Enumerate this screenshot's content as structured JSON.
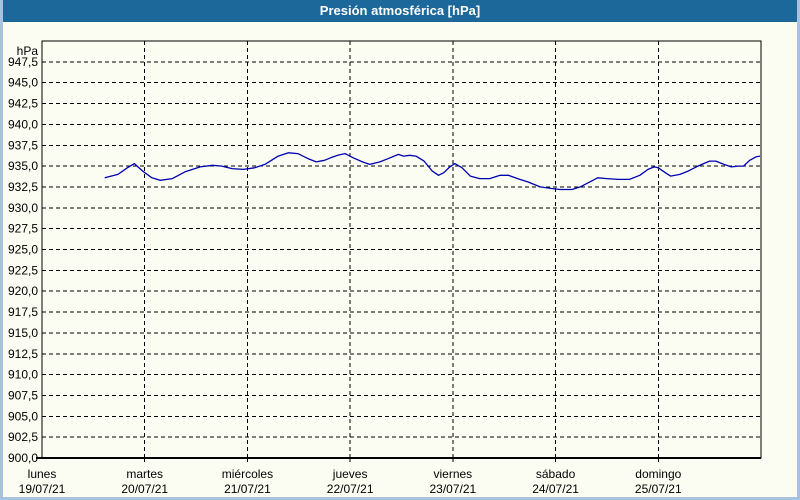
{
  "window": {
    "title": "Presión atmosférica [hPa]"
  },
  "colors": {
    "titlebar_bg": "#1d689b",
    "titlebar_text": "#ffffff",
    "window_border": "#a9c3de",
    "background": "#fbfcf2",
    "grid": "#000000",
    "axis": "#000000",
    "label_text": "#000000",
    "line": "#0000b0"
  },
  "chart_data": {
    "type": "line",
    "title": "Presión atmosférica [hPa]",
    "ylabel": "hPa",
    "ylim": [
      900,
      950
    ],
    "ytick_step": 2.5,
    "ytick_labels": [
      "947,5",
      "945,0",
      "942,5",
      "940,0",
      "937,5",
      "935,0",
      "932,5",
      "930,0",
      "927,5",
      "925,0",
      "922,5",
      "920,0",
      "917,5",
      "915,0",
      "912,5",
      "910,0",
      "907,5",
      "905,0",
      "902,5",
      "900,0"
    ],
    "grid": "dashed",
    "legend_position": "none",
    "x_axis": {
      "span_days": 7,
      "days": [
        {
          "name": "lunes",
          "date": "19/07/21"
        },
        {
          "name": "martes",
          "date": "20/07/21"
        },
        {
          "name": "miércoles",
          "date": "21/07/21"
        },
        {
          "name": "jueves",
          "date": "22/07/21"
        },
        {
          "name": "viernes",
          "date": "23/07/21"
        },
        {
          "name": "sábado",
          "date": "24/07/21"
        },
        {
          "name": "domingo",
          "date": "25/07/21"
        }
      ]
    },
    "series": [
      {
        "name": "Presión atmosférica",
        "unit": "hPa",
        "color": "#0000b0",
        "x_unit": "days_from_monday_00h",
        "points": [
          [
            0.61,
            933.6
          ],
          [
            0.74,
            934.0
          ],
          [
            0.83,
            934.8
          ],
          [
            0.9,
            935.3
          ],
          [
            0.98,
            934.4
          ],
          [
            1.07,
            933.6
          ],
          [
            1.15,
            933.3
          ],
          [
            1.27,
            933.5
          ],
          [
            1.39,
            934.3
          ],
          [
            1.54,
            934.9
          ],
          [
            1.66,
            935.1
          ],
          [
            1.75,
            935.0
          ],
          [
            1.85,
            934.7
          ],
          [
            1.96,
            934.6
          ],
          [
            2.07,
            934.8
          ],
          [
            2.17,
            935.2
          ],
          [
            2.3,
            936.2
          ],
          [
            2.4,
            936.6
          ],
          [
            2.49,
            936.5
          ],
          [
            2.59,
            935.9
          ],
          [
            2.67,
            935.5
          ],
          [
            2.75,
            935.7
          ],
          [
            2.81,
            936.0
          ],
          [
            2.88,
            936.3
          ],
          [
            2.95,
            936.5
          ],
          [
            3.03,
            936.0
          ],
          [
            3.12,
            935.5
          ],
          [
            3.19,
            935.2
          ],
          [
            3.29,
            935.5
          ],
          [
            3.39,
            936.0
          ],
          [
            3.47,
            936.4
          ],
          [
            3.52,
            936.2
          ],
          [
            3.58,
            936.3
          ],
          [
            3.64,
            936.2
          ],
          [
            3.72,
            935.6
          ],
          [
            3.8,
            934.4
          ],
          [
            3.86,
            933.9
          ],
          [
            3.91,
            934.2
          ],
          [
            3.97,
            934.9
          ],
          [
            4.02,
            935.3
          ],
          [
            4.09,
            934.8
          ],
          [
            4.17,
            933.8
          ],
          [
            4.26,
            933.5
          ],
          [
            4.36,
            933.5
          ],
          [
            4.46,
            933.9
          ],
          [
            4.54,
            933.9
          ],
          [
            4.63,
            933.5
          ],
          [
            4.73,
            933.1
          ],
          [
            4.85,
            932.5
          ],
          [
            4.97,
            932.3
          ],
          [
            5.04,
            932.2
          ],
          [
            5.16,
            932.2
          ],
          [
            5.24,
            932.5
          ],
          [
            5.35,
            933.2
          ],
          [
            5.41,
            933.6
          ],
          [
            5.5,
            933.5
          ],
          [
            5.61,
            933.4
          ],
          [
            5.72,
            933.4
          ],
          [
            5.82,
            933.9
          ],
          [
            5.9,
            934.6
          ],
          [
            5.96,
            934.9
          ],
          [
            6.0,
            934.8
          ],
          [
            6.07,
            934.2
          ],
          [
            6.12,
            933.8
          ],
          [
            6.21,
            934.0
          ],
          [
            6.29,
            934.4
          ],
          [
            6.37,
            934.9
          ],
          [
            6.44,
            935.3
          ],
          [
            6.5,
            935.6
          ],
          [
            6.56,
            935.6
          ],
          [
            6.64,
            935.2
          ],
          [
            6.71,
            934.9
          ],
          [
            6.78,
            935.0
          ],
          [
            6.83,
            935.0
          ],
          [
            6.89,
            935.7
          ],
          [
            6.95,
            936.1
          ],
          [
            6.99,
            936.2
          ]
        ]
      }
    ]
  }
}
